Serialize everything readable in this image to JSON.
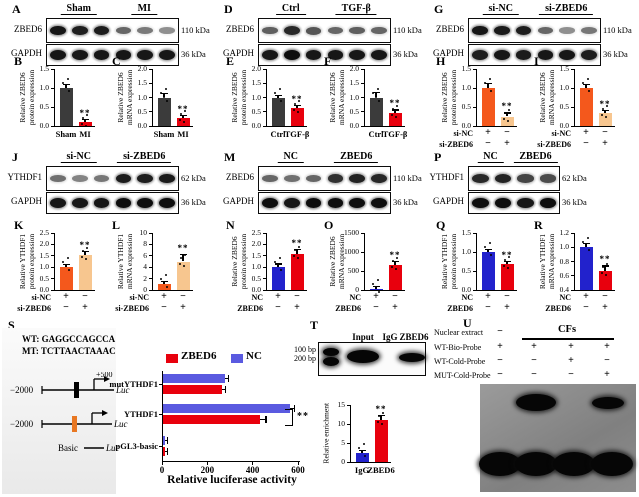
{
  "colors": {
    "dark": "#3b3b3b",
    "red": "#e8000d",
    "blue": "#2222cc",
    "legend_blue": "#5a5ae0",
    "orange": "#f4581c",
    "light_orange": "#f7c68f"
  },
  "blots": [
    {
      "letter": "A",
      "groups": [
        "Sham",
        "MI"
      ],
      "lanes": 6,
      "rows": [
        {
          "protein": "ZBED6",
          "kda": "110 kDa",
          "bands": [
            0.95,
            0.9,
            0.92,
            0.5,
            0.4,
            0.28
          ]
        },
        {
          "protein": "GAPDH",
          "kda": "36 kDa",
          "bands": [
            0.95,
            0.95,
            0.95,
            0.95,
            0.95,
            0.95
          ]
        }
      ]
    },
    {
      "letter": "D",
      "groups": [
        "Ctrl",
        "TGF-β"
      ],
      "lanes": 6,
      "rows": [
        {
          "protein": "ZBED6",
          "kda": "110 kDa",
          "bands": [
            0.55,
            0.85,
            0.6,
            0.5,
            0.55,
            0.5
          ]
        },
        {
          "protein": "GAPDH",
          "kda": "36 kDa",
          "bands": [
            0.95,
            1,
            0.95,
            0.95,
            0.95,
            0.95
          ]
        }
      ]
    },
    {
      "letter": "G",
      "groups": [
        "si-NC",
        "si-ZBED6"
      ],
      "lanes": 6,
      "rows": [
        {
          "protein": "ZBED6",
          "kda": "110 kDa",
          "bands": [
            0.95,
            0.93,
            0.9,
            0.5,
            0.28,
            0.42
          ]
        },
        {
          "protein": "GAPDH",
          "kda": "36 kDa",
          "bands": [
            0.9,
            0.95,
            0.92,
            0.95,
            0.95,
            0.9
          ]
        }
      ]
    },
    {
      "letter": "J",
      "groups": [
        "si-NC",
        "si-ZBED6"
      ],
      "lanes": 6,
      "rows": [
        {
          "protein": "YTHDF1",
          "kda": "62 kDa",
          "bands": [
            0.45,
            0.35,
            0.42,
            0.92,
            0.9,
            0.92
          ]
        },
        {
          "protein": "GAPDH",
          "kda": "36 kDa",
          "bands": [
            0.95,
            0.95,
            0.95,
            1,
            1,
            1
          ]
        }
      ]
    },
    {
      "letter": "M",
      "groups": [
        "NC",
        "ZBED6"
      ],
      "lanes": 6,
      "rows": [
        {
          "protein": "ZBED6",
          "kda": "110 kDa",
          "bands": [
            0.5,
            0.45,
            0.5,
            0.8,
            0.88,
            0.85
          ]
        },
        {
          "protein": "GAPDH",
          "kda": "36 kDa",
          "bands": [
            1,
            0.95,
            1,
            1,
            1,
            1
          ]
        }
      ]
    },
    {
      "letter": "P",
      "groups": [
        "NC",
        "ZBED6"
      ],
      "lanes": 4,
      "rows": [
        {
          "protein": "YTHDF1",
          "kda": "62 kDa",
          "bands": [
            0.85,
            0.88,
            0.7,
            0.65
          ]
        },
        {
          "protein": "GAPDH",
          "kda": "36 kDa",
          "bands": [
            1,
            1,
            0.95,
            1
          ]
        }
      ]
    }
  ],
  "bar_charts": [
    {
      "id": "B",
      "letter": "B",
      "ylabel": [
        "Relative ZBED6",
        "protein expression"
      ],
      "ymin": 0,
      "ymax": 1.5,
      "ticks": [
        "0.0",
        "0.5",
        "1.0",
        "1.5"
      ],
      "xmode": "labels",
      "bars": [
        {
          "label": "Sham",
          "value": 1.0,
          "err": 0.08,
          "color": "dark"
        },
        {
          "label": "MI",
          "value": 0.1,
          "err": 0.05,
          "color": "red",
          "sig": "**"
        }
      ]
    },
    {
      "id": "C",
      "letter": "C",
      "ylabel": [
        "Relative ZBED6",
        "mRNA expression"
      ],
      "ymin": 0,
      "ymax": 2.0,
      "ticks": [
        "0.0",
        "0.5",
        "1.0",
        "1.5",
        "2.0"
      ],
      "xmode": "labels",
      "bars": [
        {
          "label": "Sham",
          "value": 1.0,
          "err": 0.12,
          "color": "dark"
        },
        {
          "label": "MI",
          "value": 0.28,
          "err": 0.06,
          "color": "red",
          "sig": "**"
        }
      ]
    },
    {
      "id": "E",
      "letter": "E",
      "ylabel": [
        "Relative ZBED6",
        "protein expression"
      ],
      "ymin": 0,
      "ymax": 2.0,
      "ticks": [
        "0.0",
        "0.5",
        "1.0",
        "1.5",
        "2.0"
      ],
      "xmode": "labels",
      "bars": [
        {
          "label": "Ctrl",
          "value": 1.0,
          "err": 0.07,
          "color": "dark"
        },
        {
          "label": "TGF-β",
          "value": 0.63,
          "err": 0.08,
          "color": "red",
          "sig": "**"
        }
      ]
    },
    {
      "id": "F",
      "letter": "F",
      "ylabel": [
        "Relative ZBED6",
        "mRNA expression"
      ],
      "ymin": 0,
      "ymax": 2.0,
      "ticks": [
        "0.0",
        "0.5",
        "1.0",
        "1.5",
        "2.0"
      ],
      "xmode": "labels",
      "bars": [
        {
          "label": "Ctrl",
          "value": 1.0,
          "err": 0.15,
          "color": "dark"
        },
        {
          "label": "TGF-β",
          "value": 0.45,
          "err": 0.1,
          "color": "red",
          "sig": "**"
        }
      ]
    },
    {
      "id": "H",
      "letter": "H",
      "ylabel": [
        "Relative ZBED6",
        "protein expression"
      ],
      "ymin": 0,
      "ymax": 1.5,
      "ticks": [
        "0.0",
        "0.5",
        "1.0",
        "1.5"
      ],
      "xmode": "matrix",
      "matrix": [
        {
          "label": "si-NC",
          "signs": [
            "+",
            "−"
          ]
        },
        {
          "label": "si-ZBED6",
          "signs": [
            "−",
            "+"
          ]
        }
      ],
      "bars": [
        {
          "value": 1.0,
          "err": 0.1,
          "color": "orange"
        },
        {
          "value": 0.25,
          "err": 0.08,
          "color": "light_orange",
          "sig": "**"
        }
      ]
    },
    {
      "id": "I",
      "letter": "I",
      "ylabel": [
        "Relative ZBED6",
        "mRNA expression"
      ],
      "ymin": 0,
      "ymax": 1.5,
      "ticks": [
        "0.0",
        "0.5",
        "1.0",
        "1.5"
      ],
      "xmode": "matrix",
      "matrix": [
        {
          "label": "si-NC",
          "signs": [
            "+",
            "−"
          ]
        },
        {
          "label": "si-ZBED6",
          "signs": [
            "−",
            "+"
          ]
        }
      ],
      "bars": [
        {
          "value": 1.0,
          "err": 0.08,
          "color": "orange"
        },
        {
          "value": 0.35,
          "err": 0.04,
          "color": "light_orange",
          "sig": "**"
        }
      ]
    },
    {
      "id": "K",
      "letter": "K",
      "ylabel": [
        "Relative YTHDF1",
        "protein expression"
      ],
      "ymin": 0,
      "ymax": 2.5,
      "ticks": [
        "0.0",
        "0.5",
        "1.0",
        "1.5",
        "2.0",
        "2.5"
      ],
      "xmode": "matrix",
      "matrix": [
        {
          "label": "si-NC",
          "signs": [
            "+",
            "−"
          ]
        },
        {
          "label": "si-ZBED6",
          "signs": [
            "−",
            "+"
          ]
        }
      ],
      "bars": [
        {
          "value": 1.0,
          "err": 0.03,
          "color": "orange"
        },
        {
          "value": 1.55,
          "err": 0.12,
          "color": "light_orange",
          "sig": "**"
        }
      ]
    },
    {
      "id": "L",
      "letter": "L",
      "ylabel": [
        "Relative YTHDF1",
        "mRNA expression"
      ],
      "ymin": 0,
      "ymax": 10,
      "ticks": [
        "0",
        "2",
        "4",
        "6",
        "8",
        "10"
      ],
      "xmode": "matrix",
      "matrix": [
        {
          "label": "si-NC",
          "signs": [
            "+",
            "−"
          ]
        },
        {
          "label": "si-ZBED6",
          "signs": [
            "−",
            "+"
          ]
        }
      ],
      "bars": [
        {
          "value": 1.0,
          "err": 0.3,
          "color": "orange"
        },
        {
          "value": 5.0,
          "err": 1.2,
          "color": "light_orange",
          "sig": "**"
        }
      ]
    },
    {
      "id": "N",
      "letter": "N",
      "ylabel": [
        "Relative ZBED6",
        "protein expression"
      ],
      "ymin": 0,
      "ymax": 2.5,
      "ticks": [
        "0.0",
        "0.5",
        "1.0",
        "1.5",
        "2.0",
        "2.5"
      ],
      "xmode": "matrix",
      "matrix": [
        {
          "label": "NC",
          "signs": [
            "+",
            "−"
          ]
        },
        {
          "label": "ZBED6",
          "signs": [
            "−",
            "+"
          ]
        }
      ],
      "bars": [
        {
          "value": 1.0,
          "err": 0.12,
          "color": "blue"
        },
        {
          "value": 1.6,
          "err": 0.15,
          "color": "red",
          "sig": "**"
        }
      ]
    },
    {
      "id": "O",
      "letter": "O",
      "ylabel": [
        "Relative ZBED6",
        "mRNA expression"
      ],
      "ymin": 0,
      "ymax": 1500,
      "ticks": [
        "0",
        "500",
        "1000",
        "1500"
      ],
      "xmode": "matrix",
      "matrix": [
        {
          "label": "NC",
          "signs": [
            "+",
            "−"
          ]
        },
        {
          "label": "ZBED6",
          "signs": [
            "−",
            "+"
          ]
        }
      ],
      "bars": [
        {
          "value": 10,
          "err": 5,
          "color": "blue"
        },
        {
          "value": 650,
          "err": 90,
          "color": "red",
          "sig": "**"
        }
      ]
    },
    {
      "id": "Q",
      "letter": "Q",
      "ylabel": [
        "Relative YTHDF1",
        "protein expression"
      ],
      "ymin": 0,
      "ymax": 1.5,
      "ticks": [
        "0.0",
        "0.5",
        "1.0",
        "1.5"
      ],
      "xmode": "matrix",
      "matrix": [
        {
          "label": "NC",
          "signs": [
            "+",
            "−"
          ]
        },
        {
          "label": "ZBED6",
          "signs": [
            "−",
            "+"
          ]
        }
      ],
      "bars": [
        {
          "value": 1.0,
          "err": 0.04,
          "color": "blue"
        },
        {
          "value": 0.68,
          "err": 0.07,
          "color": "red",
          "sig": "**"
        }
      ]
    },
    {
      "id": "R",
      "letter": "R",
      "ylabel": [
        "Relative YTHDF1",
        "mRNA expression"
      ],
      "ymin": 0.4,
      "ymax": 1.2,
      "ticks": [
        "0.4",
        "0.6",
        "0.8",
        "1.0",
        "1.2"
      ],
      "xmode": "matrix",
      "matrix": [
        {
          "label": "NC",
          "signs": [
            "+",
            "−"
          ]
        },
        {
          "label": "ZBED6",
          "signs": [
            "−",
            "+"
          ]
        }
      ],
      "bars": [
        {
          "value": 1.0,
          "err": 0.05,
          "color": "blue"
        },
        {
          "value": 0.67,
          "err": 0.06,
          "color": "red",
          "sig": "**"
        }
      ]
    },
    {
      "id": "TC",
      "letter": "",
      "ylabel": [
        "Relative enrichment"
      ],
      "ymin": 0,
      "ymax": 15,
      "ticks": [
        "0",
        "5",
        "10",
        "15"
      ],
      "xmode": "labels",
      "bars": [
        {
          "label": "IgG",
          "value": 2.3,
          "err": 0.5,
          "color": "blue"
        },
        {
          "label": "ZBED6",
          "value": 11,
          "err": 1.2,
          "color": "red",
          "sig": "**"
        }
      ]
    }
  ],
  "panel_s": {
    "letter": "S",
    "wt_seq": "WT: GAGGCCAGCCA",
    "mt_seq": "MT: TCTTAACTAAAC",
    "construct_left_label": "−2000",
    "construct_tss_label": "+500",
    "construct_luc_label": "Luc",
    "construct_basic_label": "Basic",
    "chart_data": {
      "type": "bar",
      "orientation": "horizontal",
      "xlabel": "Relative luciferase activity",
      "categories": [
        "mutYTHDF1",
        "YTHDF1",
        "pGL3-basic"
      ],
      "series": [
        {
          "name": "NC",
          "color_key": "legend_blue",
          "values": [
            275,
            560,
            6
          ],
          "err": [
            12,
            18,
            2
          ]
        },
        {
          "name": "ZBED6",
          "color_key": "red",
          "values": [
            260,
            430,
            6
          ],
          "err": [
            14,
            22,
            2
          ]
        }
      ],
      "legend": [
        {
          "name": "ZBED6",
          "color_key": "red"
        },
        {
          "name": "NC",
          "color_key": "legend_blue"
        }
      ],
      "xticks": [
        "0",
        "200",
        "400",
        "600"
      ],
      "xmax": 600,
      "sig": {
        "category": "YTHDF1",
        "label": "**"
      }
    }
  },
  "panel_t": {
    "letter": "T",
    "lane_headers": [
      "Input",
      "IgG",
      "ZBED6"
    ],
    "markers": [
      "100 bp",
      "200 bp"
    ]
  },
  "panel_u": {
    "letter": "U",
    "cfs_header": "CFs",
    "rows": [
      {
        "label": "Nuclear extract",
        "signs": [
          "−",
          "",
          "",
          ""
        ]
      },
      {
        "label": "WT-Bio-Probe",
        "signs": [
          "+",
          "+",
          "+",
          "+"
        ]
      },
      {
        "label": "WT-Cold-Probe",
        "signs": [
          "−",
          "−",
          "+",
          "−"
        ]
      },
      {
        "label": "MUT-Cold-Probe",
        "signs": [
          "−",
          "−",
          "−",
          "+"
        ]
      }
    ]
  }
}
